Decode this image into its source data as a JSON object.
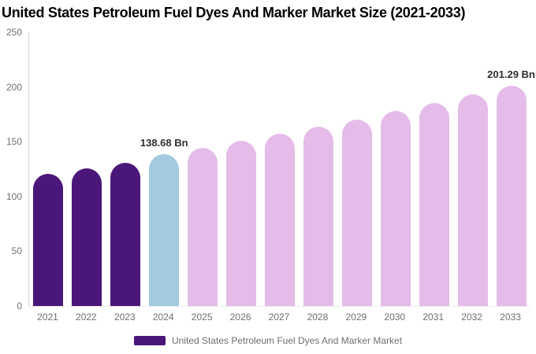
{
  "legend": {
    "label": "United States Petroleum Fuel Dyes And Marker Market",
    "swatch_color": "#4B1679"
  },
  "colors": {
    "historical_bar": "#4B1679",
    "current_year_bar": "#A3CADF",
    "forecast_bar": "#E5BCE9",
    "axis_text": "#6F6F6F",
    "annotation_text": "#2E2E2E",
    "axis_line": "#D6D6D6",
    "baseline": "#EDEDED",
    "title_text": "#000000"
  },
  "chart_data": {
    "type": "bar",
    "title": "United States Petroleum Fuel Dyes And Marker Market Size (2021-2033)",
    "unit": "Bn",
    "categories": [
      "2021",
      "2022",
      "2023",
      "2024",
      "2025",
      "2026",
      "2027",
      "2028",
      "2029",
      "2030",
      "2031",
      "2032",
      "2033"
    ],
    "values": [
      120.5,
      125.4,
      130.9,
      138.68,
      144.55,
      150.66,
      157.03,
      163.67,
      170.6,
      177.82,
      185.35,
      193.2,
      201.29
    ],
    "bar_colors": [
      "#4B1679",
      "#4B1679",
      "#4B1679",
      "#A3CADF",
      "#E5BCE9",
      "#E5BCE9",
      "#E5BCE9",
      "#E5BCE9",
      "#E5BCE9",
      "#E5BCE9",
      "#E5BCE9",
      "#E5BCE9",
      "#E5BCE9"
    ],
    "labeled_points": [
      {
        "category": "2024",
        "label": "138.68 Bn"
      },
      {
        "category": "2033",
        "label": "201.29 Bn"
      }
    ],
    "xlabel": "",
    "ylabel": "",
    "ylim": [
      0,
      250
    ],
    "yticks": [
      0,
      50,
      100,
      150,
      200,
      250
    ],
    "grid": false,
    "legend_position": "bottom",
    "legend_entries": [
      "United States Petroleum Fuel Dyes And Marker Market"
    ]
  }
}
